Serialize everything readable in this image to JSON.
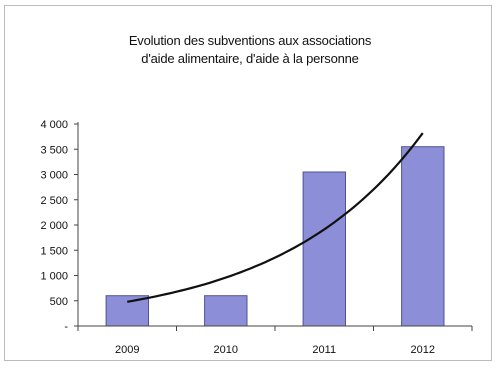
{
  "chart_data": {
    "type": "bar",
    "title_lines": [
      "Evolution des subventions aux associations",
      "d'aide alimentaire, d'aide à la personne"
    ],
    "categories": [
      "2009",
      "2010",
      "2011",
      "2012"
    ],
    "values": [
      600,
      600,
      3050,
      3550
    ],
    "trendline": {
      "shape": "exponential",
      "x": [
        "2009",
        "2010",
        "2011",
        "2012"
      ],
      "values": [
        480,
        1100,
        2050,
        3820
      ]
    },
    "yticks": [
      "-",
      "500",
      "1 000",
      "1 500",
      "2 000",
      "2 500",
      "3 000",
      "3 500",
      "4 000"
    ],
    "ylim": [
      0,
      4000
    ],
    "grid": false,
    "legend": "none",
    "colors": {
      "bar_fill": "#8c8fd8",
      "bar_stroke": "#4f5296",
      "trendline": "#111111",
      "axis": "#444444",
      "frame": "#bcbcbc"
    }
  }
}
